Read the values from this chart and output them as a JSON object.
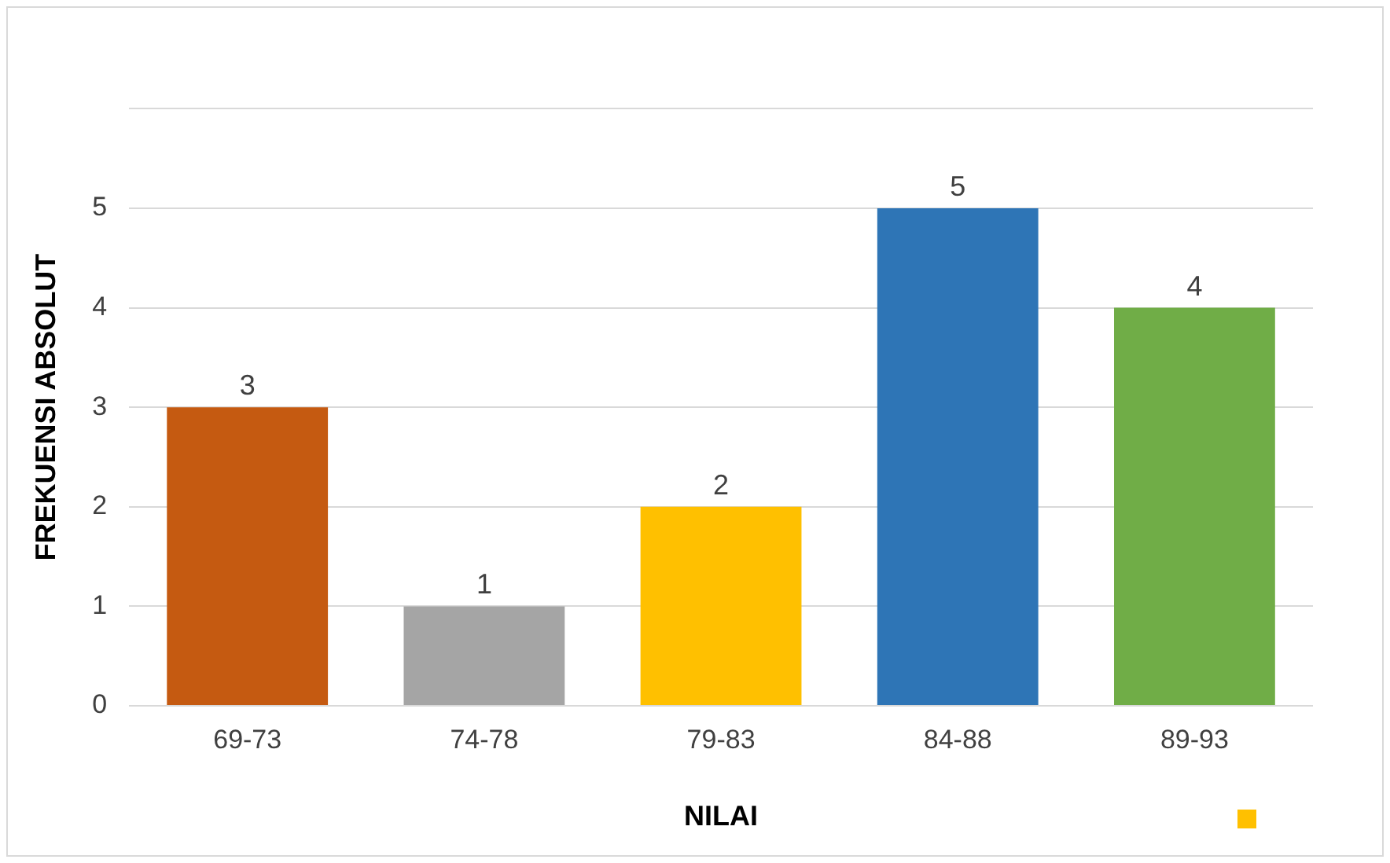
{
  "chart_data": {
    "type": "bar",
    "xlabel": "NILAI",
    "ylabel": "FREKUENSI ABSOLUT",
    "categories": [
      "69-73",
      "74-78",
      "79-83",
      "84-88",
      "89-93"
    ],
    "values": [
      3,
      1,
      2,
      5,
      4
    ],
    "colors": [
      "#c55a11",
      "#a5a5a5",
      "#ffc000",
      "#2e75b6",
      "#70ad47"
    ],
    "ylim": [
      0,
      6
    ],
    "yticks": [
      0,
      1,
      2,
      3,
      4,
      5,
      {
        "value": 6,
        "label": null
      }
    ],
    "grid": "y",
    "data_labels": true
  }
}
